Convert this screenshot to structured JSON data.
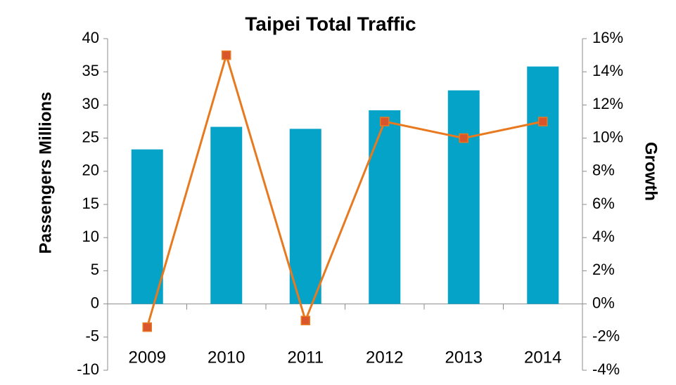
{
  "chart_data": {
    "type": "bar-line",
    "title": "Taipei Total Traffic",
    "ylabel": "Passengers Millions",
    "y2label": "Growth",
    "categories": [
      "2009",
      "2010",
      "2011",
      "2012",
      "2013",
      "2014"
    ],
    "series": [
      {
        "name": "Passengers",
        "type": "bar",
        "color": "#05a3c8",
        "values": [
          23.3,
          26.7,
          26.4,
          29.2,
          32.2,
          35.8
        ]
      },
      {
        "name": "Growth",
        "type": "line",
        "axis": "y2",
        "color": "#e8791f",
        "marker_color": "#d9552b",
        "values": [
          -1.4,
          15,
          -1.0,
          11,
          10,
          11
        ]
      }
    ],
    "ylim": [
      -10,
      40
    ],
    "yticks": [
      -10,
      -5,
      0,
      5,
      10,
      15,
      20,
      25,
      30,
      35,
      40
    ],
    "y2lim": [
      -4,
      16
    ],
    "y2ticks": [
      {
        "value": -4,
        "label": "-4%"
      },
      {
        "value": -2,
        "label": "-2%"
      },
      {
        "value": 0,
        "label": "0%"
      },
      {
        "value": 2,
        "label": "2%"
      },
      {
        "value": 4,
        "label": "4%"
      },
      {
        "value": 6,
        "label": "6%"
      },
      {
        "value": 8,
        "label": "8%"
      },
      {
        "value": 10,
        "label": "10%"
      },
      {
        "value": 12,
        "label": "12%"
      },
      {
        "value": 14,
        "label": "14%"
      },
      {
        "value": 16,
        "label": "16%"
      }
    ],
    "grid": false
  }
}
